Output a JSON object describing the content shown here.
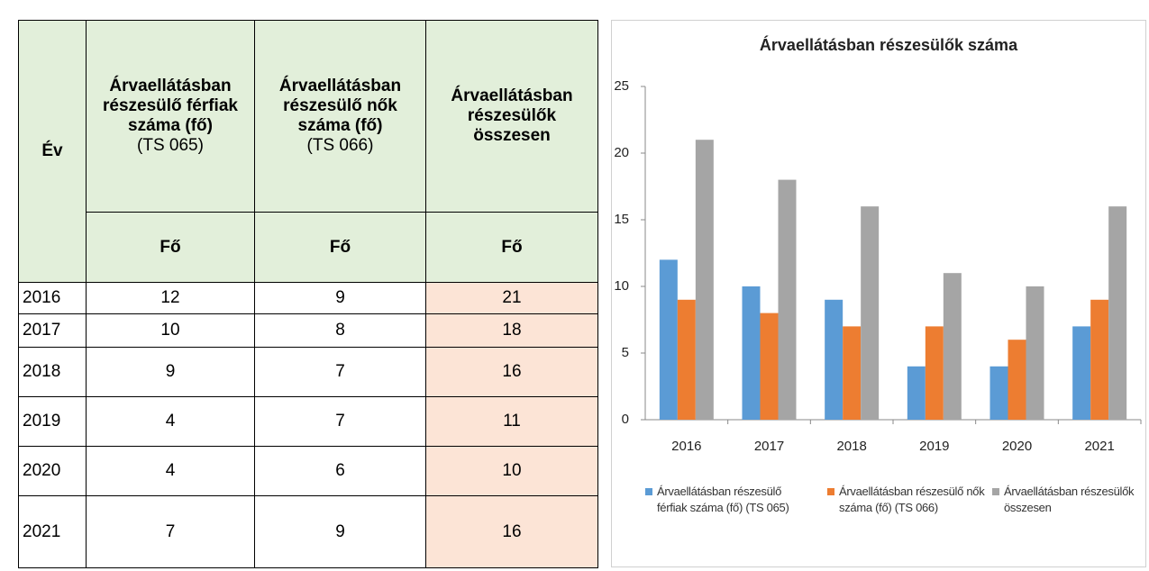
{
  "table": {
    "header": {
      "year": "Év",
      "columns": [
        {
          "title": "Árvaellátásban részesülő férfiak száma (fő)",
          "code": "(TS 065)"
        },
        {
          "title": "Árvaellátásban részesülő nők száma (fő)",
          "code": "(TS 066)"
        },
        {
          "title": "Árvaellátásban részesülők összesen"
        }
      ],
      "units": [
        "Fő",
        "Fő",
        "Fő"
      ]
    },
    "rows": [
      [
        2016,
        12,
        9,
        21
      ],
      [
        2017,
        10,
        8,
        18
      ],
      [
        2018,
        9,
        7,
        16
      ],
      [
        2019,
        4,
        7,
        11
      ],
      [
        2020,
        4,
        6,
        10
      ],
      [
        2021,
        7,
        9,
        16
      ]
    ]
  },
  "chart_data": {
    "type": "bar",
    "title": "Árvaellátásban részesülők száma",
    "categories": [
      "2016",
      "2017",
      "2018",
      "2019",
      "2020",
      "2021"
    ],
    "series": [
      {
        "name": "Árvaellátásban részesülő férfiak száma (fő) (TS 065)",
        "color": "#5b9bd5",
        "values": [
          12,
          10,
          9,
          4,
          4,
          7
        ]
      },
      {
        "name": "Árvaellátásban részesülő nők száma (fő) (TS 066)",
        "color": "#ed7d31",
        "values": [
          9,
          8,
          7,
          7,
          6,
          9
        ]
      },
      {
        "name": "Árvaellátásban részesülők összesen",
        "color": "#a5a5a5",
        "values": [
          21,
          18,
          16,
          11,
          10,
          16
        ]
      }
    ],
    "ylim": [
      0,
      25
    ],
    "yticks": [
      0,
      5,
      10,
      15,
      20,
      25
    ],
    "grid": false,
    "legend": "bottom"
  }
}
